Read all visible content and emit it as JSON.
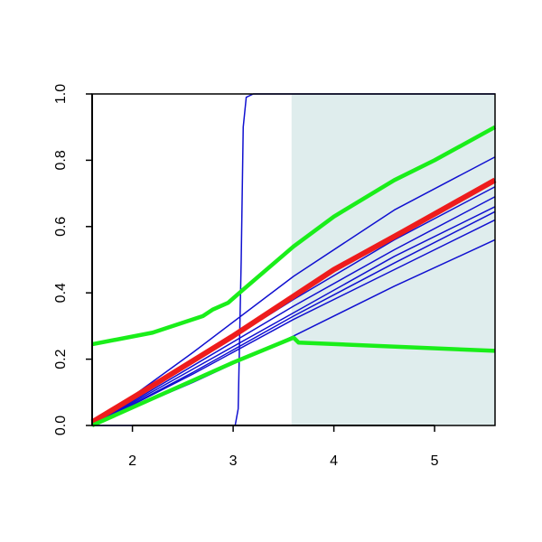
{
  "chart_data": {
    "type": "line",
    "xlim": [
      1.6,
      5.6
    ],
    "xticks": [
      2,
      3,
      4,
      5
    ],
    "ylim": [
      0,
      1
    ],
    "yticks": [
      {
        "value": 0,
        "label": "0.0"
      },
      0.2,
      0.4,
      0.6,
      0.8,
      {
        "value": 1,
        "label": "1.0"
      }
    ],
    "shaded_region": [
      3.58,
      5.6
    ],
    "shade_color": "#dfeded",
    "series": [
      {
        "color": "#1010d0",
        "width": 1.5,
        "x": [
          1.6,
          3.02,
          3.05,
          3.08,
          3.1,
          3.13,
          3.2,
          5.6
        ],
        "values": [
          0,
          0,
          0.05,
          0.5,
          0.9,
          0.99,
          1,
          1
        ]
      },
      {
        "color": "#1010d0",
        "width": 1.5,
        "x": [
          1.6,
          2.6,
          3.6,
          4.6,
          5.6
        ],
        "values": [
          0,
          0.22,
          0.45,
          0.65,
          0.81
        ]
      },
      {
        "color": "#1010d0",
        "width": 1.5,
        "x": [
          1.6,
          2.6,
          3.6,
          4.6,
          5.6
        ],
        "values": [
          0,
          0.19,
          0.38,
          0.56,
          0.72
        ]
      },
      {
        "color": "#1010d0",
        "width": 1.5,
        "x": [
          1.6,
          2.6,
          3.6,
          4.6,
          5.6
        ],
        "values": [
          0,
          0.18,
          0.36,
          0.53,
          0.69
        ]
      },
      {
        "color": "#1010d0",
        "width": 1.5,
        "x": [
          1.6,
          2.6,
          3.6,
          4.6,
          5.6
        ],
        "values": [
          0,
          0.17,
          0.34,
          0.51,
          0.66
        ]
      },
      {
        "color": "#1010d0",
        "width": 1.5,
        "x": [
          1.6,
          2.6,
          3.6,
          4.6,
          5.6
        ],
        "values": [
          0,
          0.16,
          0.33,
          0.49,
          0.645
        ]
      },
      {
        "color": "#1010d0",
        "width": 1.5,
        "x": [
          1.6,
          2.6,
          3.6,
          4.6,
          5.6
        ],
        "values": [
          0,
          0.155,
          0.32,
          0.47,
          0.62
        ]
      },
      {
        "color": "#1010d0",
        "width": 1.5,
        "x": [
          1.6,
          2.6,
          3.6,
          4.6,
          5.6
        ],
        "values": [
          0,
          0.13,
          0.27,
          0.42,
          0.56
        ]
      },
      {
        "color": "#ee1c1c",
        "width": 6,
        "x": [
          1.6,
          2.2,
          3.0,
          3.6,
          4.0,
          4.6,
          5.1,
          5.6
        ],
        "values": [
          0.01,
          0.12,
          0.27,
          0.39,
          0.47,
          0.57,
          0.655,
          0.74
        ]
      },
      {
        "color": "#1aee1a",
        "width": 4.5,
        "x": [
          1.6,
          2.2,
          2.7,
          2.8,
          2.95,
          3.1,
          3.6,
          4.0,
          4.6,
          5.0,
          5.6
        ],
        "values": [
          0.245,
          0.28,
          0.33,
          0.35,
          0.37,
          0.41,
          0.54,
          0.63,
          0.74,
          0.8,
          0.9
        ]
      },
      {
        "color": "#1aee1a",
        "width": 4.5,
        "x": [
          1.6,
          3.0,
          3.6,
          3.65,
          5.6
        ],
        "values": [
          0,
          0.19,
          0.265,
          0.25,
          0.225
        ]
      }
    ]
  }
}
